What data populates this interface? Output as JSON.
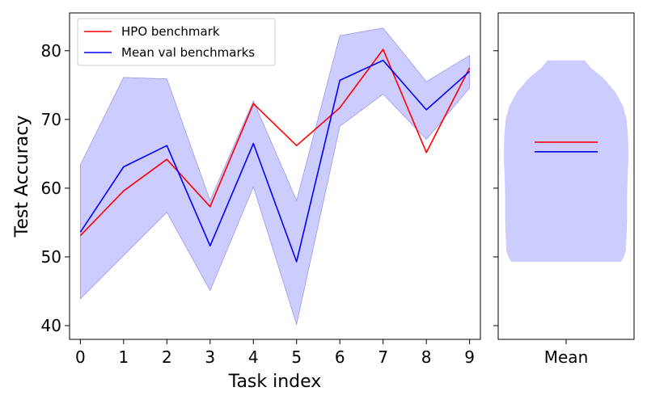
{
  "chart_data": [
    {
      "type": "line",
      "xlabel": "Task index",
      "ylabel": "Test Accuracy",
      "x": [
        0,
        1,
        2,
        3,
        4,
        5,
        6,
        7,
        8,
        9
      ],
      "xticks": [
        "0",
        "1",
        "2",
        "3",
        "4",
        "5",
        "6",
        "7",
        "8",
        "9"
      ],
      "yticks": [
        "40",
        "50",
        "60",
        "70",
        "80"
      ],
      "ytick_values": [
        40,
        50,
        60,
        70,
        80
      ],
      "ylim": [
        38,
        85.5
      ],
      "xlim": [
        -0.25,
        9.25
      ],
      "grid": false,
      "legend_position": "top-left",
      "series": [
        {
          "name": "HPO benchmark",
          "color": "#ff0000",
          "values": [
            53.1,
            59.6,
            64.2,
            57.3,
            72.3,
            66.2,
            71.7,
            80.2,
            65.2,
            77.5
          ]
        },
        {
          "name": "Mean val benchmarks",
          "color": "#0000ff",
          "values": [
            53.6,
            63.1,
            66.2,
            51.6,
            66.5,
            49.3,
            75.7,
            78.6,
            71.4,
            77.0
          ],
          "band_color": "#ccccff",
          "band_lower": [
            43.9,
            50.2,
            56.5,
            45.1,
            60.2,
            40.2,
            69.0,
            73.7,
            67.1,
            74.6
          ],
          "band_upper": [
            63.4,
            76.1,
            75.9,
            58.2,
            72.7,
            58.2,
            82.2,
            83.3,
            75.5,
            79.3
          ]
        }
      ]
    },
    {
      "type": "violin",
      "categories": [
        "Mean"
      ],
      "ylim": [
        38,
        85.5
      ],
      "violin": {
        "color": "#ccccff",
        "min": 49.3,
        "max": 78.6,
        "profile": [
          [
            49.3,
            0.88
          ],
          [
            50,
            0.93
          ],
          [
            51,
            0.96
          ],
          [
            53,
            0.97
          ],
          [
            56,
            0.98
          ],
          [
            59,
            0.98
          ],
          [
            62,
            0.99
          ],
          [
            64,
            1.0
          ],
          [
            66,
            1.0
          ],
          [
            68,
            0.99
          ],
          [
            70,
            0.97
          ],
          [
            72,
            0.91
          ],
          [
            74,
            0.79
          ],
          [
            76,
            0.6
          ],
          [
            77.5,
            0.4
          ],
          [
            78.6,
            0.3
          ]
        ]
      },
      "mean_lines": [
        {
          "name": "HPO benchmark",
          "value": 66.7,
          "color": "#ff0000"
        },
        {
          "name": "Mean val benchmarks",
          "value": 65.3,
          "color": "#0000ff"
        }
      ]
    }
  ]
}
